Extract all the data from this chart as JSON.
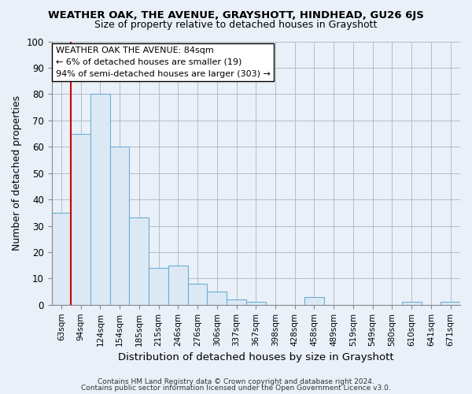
{
  "title": "WEATHER OAK, THE AVENUE, GRAYSHOTT, HINDHEAD, GU26 6JS",
  "subtitle": "Size of property relative to detached houses in Grayshott",
  "xlabel": "Distribution of detached houses by size in Grayshott",
  "ylabel": "Number of detached properties",
  "bar_color": "#dce9f5",
  "bar_edge_color": "#6baed6",
  "marker_line_color": "#cc0000",
  "background_color": "#eaf0f8",
  "grid_color": "#b0bec8",
  "categories": [
    "63sqm",
    "94sqm",
    "124sqm",
    "154sqm",
    "185sqm",
    "215sqm",
    "246sqm",
    "276sqm",
    "306sqm",
    "337sqm",
    "367sqm",
    "398sqm",
    "428sqm",
    "458sqm",
    "489sqm",
    "519sqm",
    "549sqm",
    "580sqm",
    "610sqm",
    "641sqm",
    "671sqm"
  ],
  "values": [
    35,
    65,
    80,
    60,
    33,
    14,
    15,
    8,
    5,
    2,
    1,
    0,
    0,
    3,
    0,
    0,
    0,
    0,
    1,
    0,
    1
  ],
  "marker_label": "WEATHER OAK THE AVENUE: 84sqm",
  "annotation_line1": "← 6% of detached houses are smaller (19)",
  "annotation_line2": "94% of semi-detached houses are larger (303) →",
  "ylim": [
    0,
    100
  ],
  "yticks": [
    0,
    10,
    20,
    30,
    40,
    50,
    60,
    70,
    80,
    90,
    100
  ],
  "footer1": "Contains HM Land Registry data © Crown copyright and database right 2024.",
  "footer2": "Contains public sector information licensed under the Open Government Licence v3.0."
}
